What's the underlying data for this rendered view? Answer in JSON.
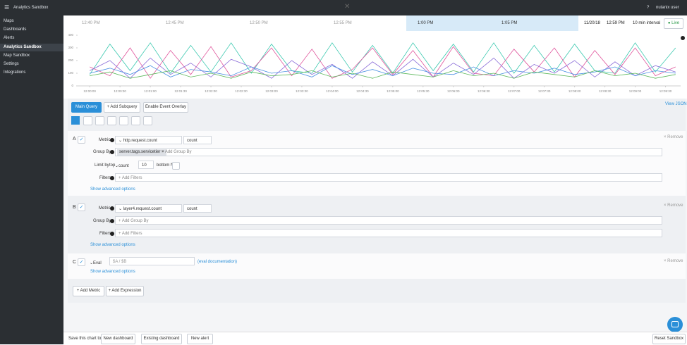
{
  "header": {
    "title": "Analytics Sandbox",
    "help": "?",
    "user": "nutanix user"
  },
  "nav": [
    "Maps",
    "Dashboards",
    "Alerts",
    "Analytics Sandbox",
    "Map Sandbox",
    "Settings",
    "Integrations"
  ],
  "timeline": {
    "labels": [
      "12:40 PM",
      "12:45 PM",
      "12:50 PM",
      "12:55 PM",
      "1:00 PM",
      "1:05 PM"
    ],
    "date": "11/20/18",
    "time": "12:59 PM",
    "interval": "10 min interval",
    "live": "Live"
  },
  "chart_data": {
    "type": "line",
    "x": [
      0,
      20,
      40,
      60,
      80,
      100,
      120,
      140,
      160,
      180,
      200,
      220,
      240,
      260,
      280,
      300,
      320,
      340,
      360,
      380,
      400,
      420,
      440,
      460,
      480,
      500,
      520,
      540,
      560,
      580
    ],
    "xlim": [
      -12,
      585
    ],
    "xticks": [
      {
        "value": 0,
        "label": "12:00:00"
      },
      {
        "value": 30,
        "label": "12:00:30"
      },
      {
        "value": 60,
        "label": "12:01:00"
      },
      {
        "value": 90,
        "label": "12:01:30"
      },
      {
        "value": 120,
        "label": "12:02:00"
      },
      {
        "value": 150,
        "label": "12:02:30"
      },
      {
        "value": 180,
        "label": "12:03:00"
      },
      {
        "value": 210,
        "label": "12:03:30"
      },
      {
        "value": 240,
        "label": "12:04:00"
      },
      {
        "value": 270,
        "label": "12:04:30"
      },
      {
        "value": 300,
        "label": "12:05:00"
      },
      {
        "value": 330,
        "label": "12:05:30"
      },
      {
        "value": 360,
        "label": "12:06:00"
      },
      {
        "value": 390,
        "label": "12:06:30"
      },
      {
        "value": 420,
        "label": "12:07:00"
      },
      {
        "value": 450,
        "label": "12:07:30"
      },
      {
        "value": 480,
        "label": "12:08:00"
      },
      {
        "value": 510,
        "label": "12:08:30"
      },
      {
        "value": 540,
        "label": "12:09:00"
      },
      {
        "value": 570,
        "label": "12:09:30"
      }
    ],
    "ylim": [
      0,
      420
    ],
    "yticks": [
      0,
      100,
      200,
      300,
      400
    ],
    "series": [
      {
        "color": "#3cc9b0",
        "values": [
          90,
          330,
          120,
          340,
          100,
          320,
          110,
          340,
          100,
          330,
          120,
          100,
          340,
          110,
          320,
          100,
          340,
          120,
          330,
          110,
          340,
          100,
          320,
          110,
          330,
          120,
          100,
          340,
          110,
          300
        ]
      },
      {
        "color": "#e0559c",
        "values": [
          150,
          80,
          300,
          60,
          280,
          90,
          310,
          70,
          120,
          300,
          80,
          290,
          60,
          130,
          300,
          90,
          280,
          70,
          310,
          100,
          80,
          290,
          110,
          300,
          70,
          280,
          90,
          300,
          80,
          150
        ]
      },
      {
        "color": "#8a6cd8",
        "values": [
          120,
          200,
          60,
          220,
          90,
          180,
          70,
          210,
          150,
          60,
          200,
          90,
          170,
          60,
          190,
          80,
          210,
          70,
          180,
          90,
          220,
          60,
          170,
          100,
          200,
          70,
          190,
          80,
          160,
          110
        ]
      },
      {
        "color": "#4a90e2",
        "values": [
          100,
          140,
          90,
          160,
          70,
          130,
          110,
          80,
          150,
          100,
          120,
          70,
          160,
          90,
          130,
          80,
          140,
          100,
          90,
          150,
          80,
          120,
          100,
          140,
          90,
          110,
          150,
          80,
          120,
          100
        ]
      },
      {
        "color": "#5cb85c",
        "values": [
          80,
          110,
          60,
          90,
          120,
          70,
          100,
          60,
          110,
          80,
          90,
          120,
          70,
          100,
          60,
          110,
          90,
          70,
          120,
          80,
          100,
          60,
          110,
          90,
          70,
          120,
          80,
          100,
          60,
          90
        ]
      }
    ]
  },
  "toolbar": {
    "main": "Main Query",
    "subquery": "+ Add Subquery",
    "overlay": "Enable Event Overlay",
    "view_json": "View JSON"
  },
  "queries": {
    "a": {
      "label": "A",
      "metric_label": "Metric",
      "metric": "http.request.count",
      "agg": "count",
      "group_label": "Group By",
      "group_chip": "server.tags.servicetier",
      "group_add": "+ Add Group By",
      "limit_label": "Limit by",
      "limit_dir": "top",
      "limit_field": "count",
      "limit_n": "10",
      "bottom": "bottom N",
      "filters_label": "Filters",
      "filters_add": "+ Add Filters",
      "advanced": "Show advanced options",
      "remove": "Remove"
    },
    "b": {
      "label": "B",
      "metric_label": "Metric",
      "metric": "layer4.request.count",
      "agg": "count",
      "group_label": "Group By",
      "group_add": "+ Add Group By",
      "filters_label": "Filters",
      "filters_add": "+ Add Filters",
      "advanced": "Show advanced options",
      "remove": "Remove"
    },
    "c": {
      "label": "C",
      "kind": "Eval",
      "expr": "$A / $B",
      "doc": "(eval documentation)",
      "advanced": "Show advanced options",
      "remove": "Remove"
    }
  },
  "add": {
    "metric": "+ Add Metric",
    "expression": "+ Add Expression"
  },
  "footer": {
    "save": "Save this chart to:",
    "new_dashboard": "New dashboard",
    "existing": "Existing dashboard",
    "new_alert": "New alert",
    "reset": "Reset Sandbox"
  }
}
